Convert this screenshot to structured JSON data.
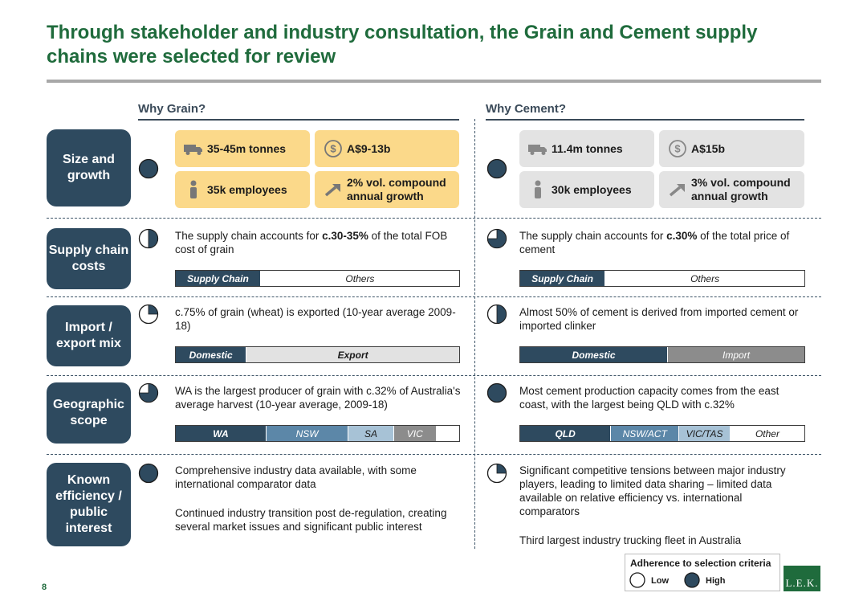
{
  "title": "Through stakeholder and industry consultation, the Grain and Cement supply chains were selected for review",
  "columns": {
    "grain": "Why Grain?",
    "cement": "Why Cement?"
  },
  "rows": {
    "size": {
      "label": "Size and growth",
      "grain": {
        "harvey": 1,
        "tiles": [
          "35-45m tonnes",
          "A$9-13b",
          "35k employees",
          "2% vol. compound annual growth"
        ]
      },
      "cement": {
        "harvey": 1,
        "tiles": [
          "11.4m tonnes",
          "A$15b",
          "30k employees",
          "3% vol. compound annual growth"
        ]
      }
    },
    "supply": {
      "label": "Supply chain costs",
      "grain": {
        "harvey": 0.5,
        "pre": "The supply chain accounts for ",
        "bold": "c.30-35%",
        "post": " of the total FOB cost of grain",
        "bar": [
          {
            "label": "Supply Chain",
            "share": 0.3
          },
          {
            "label": "Others",
            "share": 0.7
          }
        ]
      },
      "cement": {
        "harvey": 0.75,
        "pre": "The supply chain accounts for ",
        "bold": "c.30%",
        "post": " of the total price of cement",
        "bar": [
          {
            "label": "Supply Chain",
            "share": 0.3
          },
          {
            "label": "Others",
            "share": 0.7
          }
        ]
      }
    },
    "import": {
      "label": "Import / export mix",
      "grain": {
        "harvey": 0.25,
        "text": "c.75% of grain (wheat) is exported (10-year average 2009-18)",
        "bar": [
          {
            "label": "Domestic",
            "share": 0.25
          },
          {
            "label": "Export",
            "share": 0.75
          }
        ]
      },
      "cement": {
        "harvey": 0.5,
        "text": "Almost 50% of cement is derived from imported cement or imported clinker",
        "bar": [
          {
            "label": "Domestic",
            "share": 0.52
          },
          {
            "label": "Import",
            "share": 0.48
          }
        ]
      }
    },
    "geo": {
      "label": "Geographic scope",
      "grain": {
        "harvey": 0.75,
        "text": "WA is the largest producer of grain with c.32% of Australia's average harvest (10-year average, 2009-18)",
        "bar": [
          {
            "label": "WA",
            "share": 0.32
          },
          {
            "label": "NSW",
            "share": 0.29
          },
          {
            "label": "SA",
            "share": 0.16
          },
          {
            "label": "VIC",
            "share": 0.15
          },
          {
            "label": "",
            "share": 0.08
          }
        ]
      },
      "cement": {
        "harvey": 1,
        "text": "Most cement production capacity comes from the east coast, with the largest being QLD with c.32%",
        "bar": [
          {
            "label": "QLD",
            "share": 0.32
          },
          {
            "label": "NSW/ACT",
            "share": 0.24
          },
          {
            "label": "VIC/TAS",
            "share": 0.18
          },
          {
            "label": "Other",
            "share": 0.26
          }
        ]
      }
    },
    "eff": {
      "label": "Known efficiency / public interest",
      "grain": {
        "harvey": 1,
        "text1": "Comprehensive industry data available, with some international comparator data",
        "text2": "Continued industry transition post de-regulation, creating several market issues and significant public interest"
      },
      "cement": {
        "harvey": 0.25,
        "text1": "Significant competitive tensions between major industry players, leading to limited data sharing – limited data available on relative efficiency vs. international comparators",
        "text2": "Third largest industry trucking fleet in Australia"
      }
    }
  },
  "legend": {
    "title": "Adherence to selection criteria",
    "low": "Low",
    "high": "High"
  },
  "page_number": "8",
  "logo": "L.E.K.",
  "colors": {
    "navy": "#2e4a5f",
    "green": "#1f6b3c",
    "yellow": "#fbd98a",
    "grey": "#e3e3e3"
  }
}
